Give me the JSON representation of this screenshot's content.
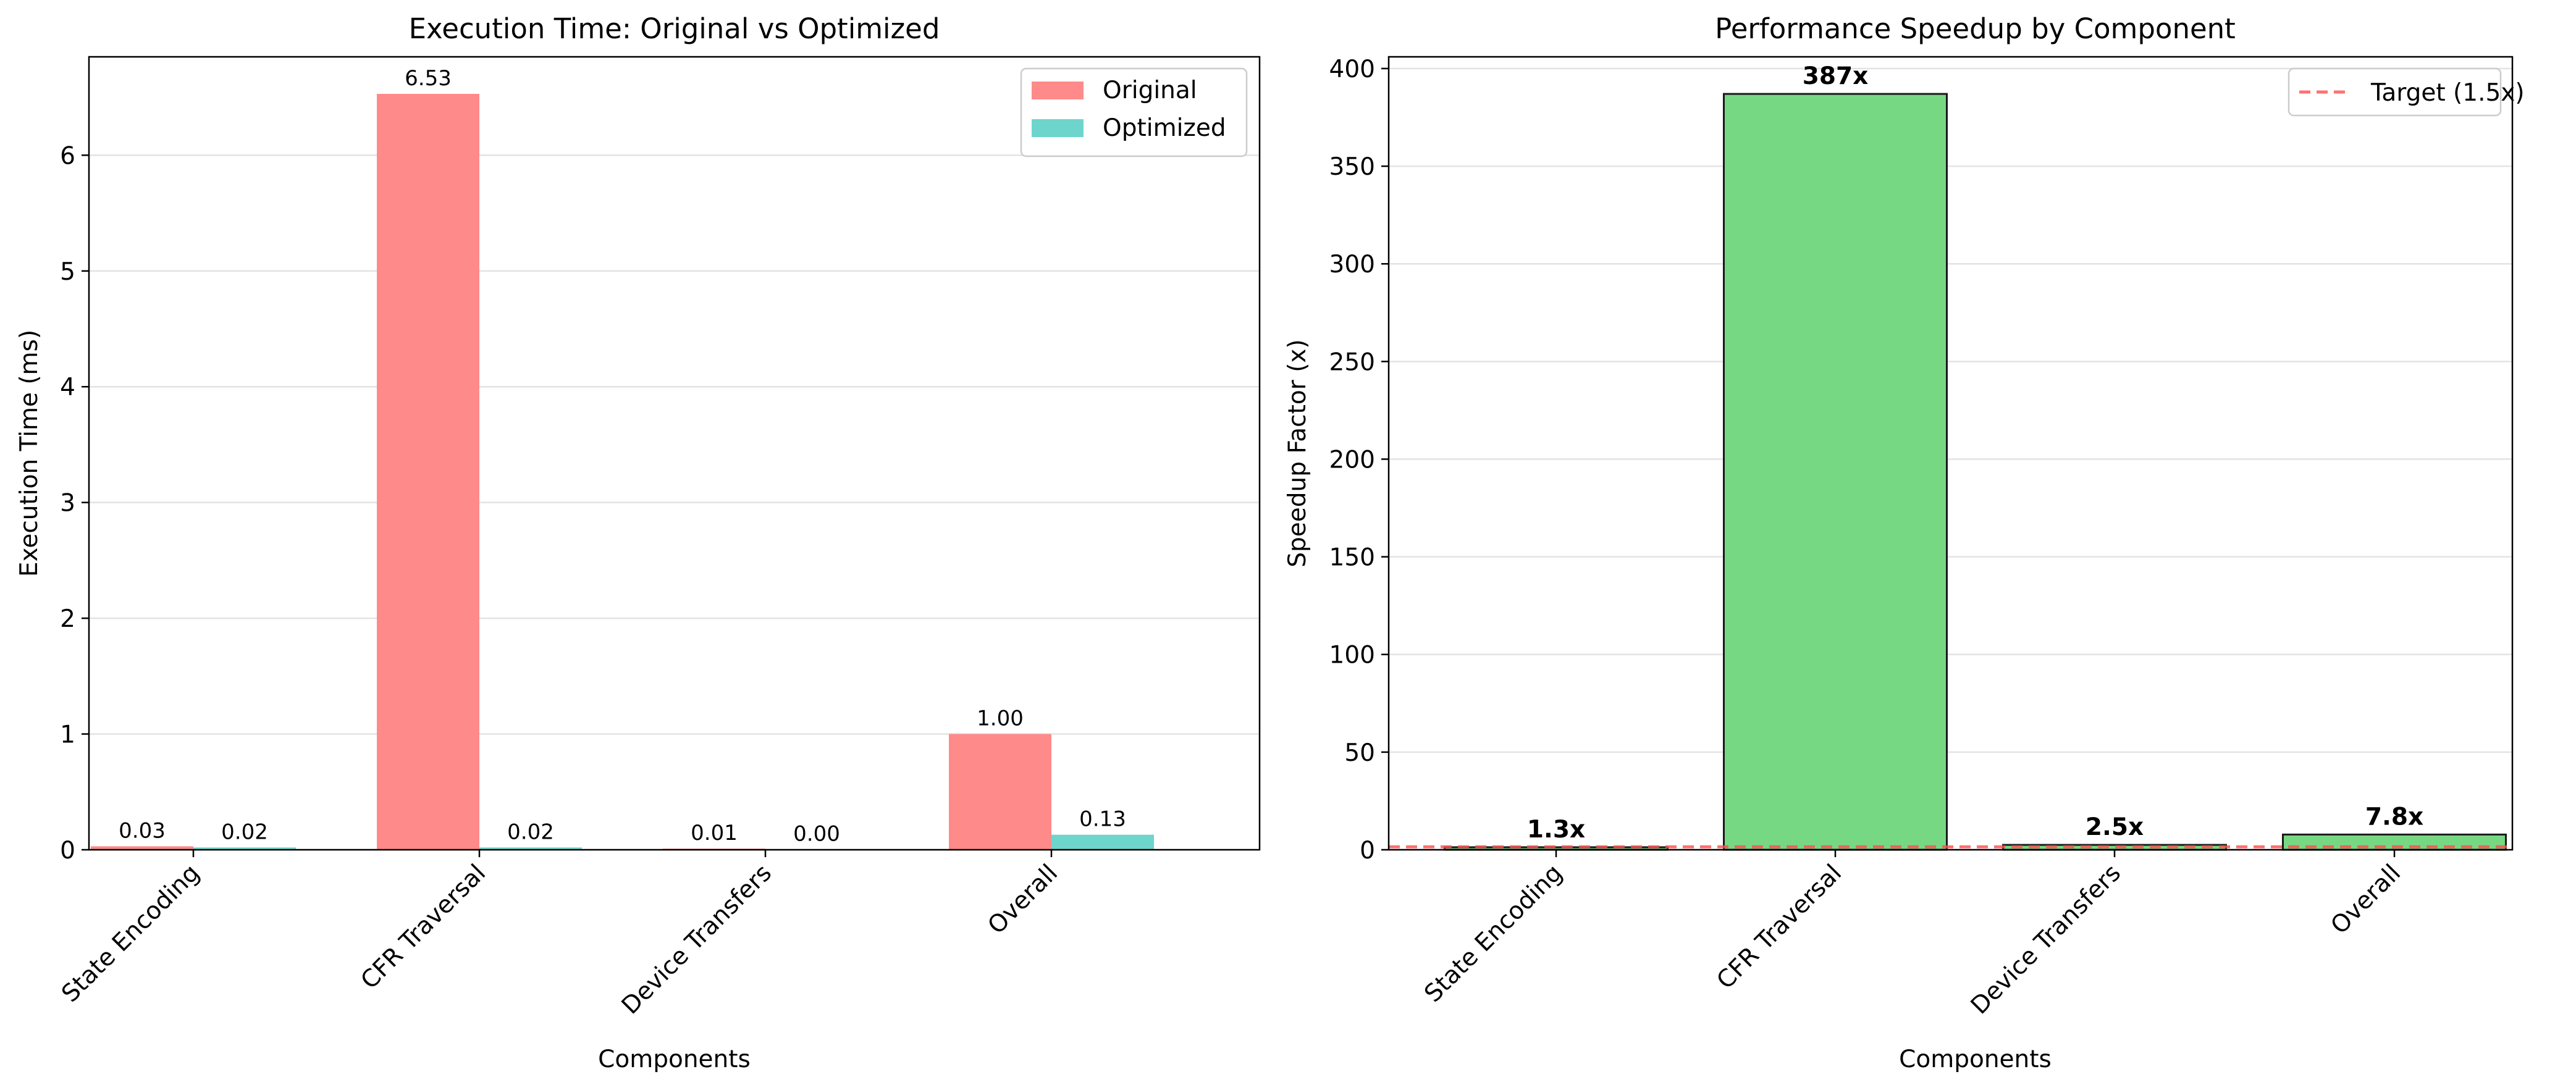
{
  "chart_data": [
    {
      "type": "bar",
      "title": "Execution Time: Original vs Optimized",
      "xlabel": "Components",
      "ylabel": "Execution Time (ms)",
      "categories": [
        "State Encoding",
        "CFR Traversal",
        "Device Transfers",
        "Overall"
      ],
      "series": [
        {
          "name": "Original",
          "color": "#ff8a8a",
          "values": [
            0.03,
            6.53,
            0.01,
            1.0
          ],
          "labels": [
            "0.03",
            "6.53",
            "0.01",
            "1.00"
          ]
        },
        {
          "name": "Optimized",
          "color": "#6ed5cc",
          "values": [
            0.02,
            0.02,
            0.004,
            0.13
          ],
          "labels": [
            "0.02",
            "0.02",
            "0.00",
            "0.13"
          ]
        }
      ],
      "ylim": [
        0,
        6.85
      ],
      "yticks": [
        0,
        1,
        2,
        3,
        4,
        5,
        6
      ],
      "grid": "y",
      "legend": "top-right"
    },
    {
      "type": "bar",
      "title": "Performance Speedup by Component",
      "xlabel": "Components",
      "ylabel": "Speedup Factor (x)",
      "categories": [
        "State Encoding",
        "CFR Traversal",
        "Device Transfers",
        "Overall"
      ],
      "values": [
        1.3,
        387,
        2.5,
        7.8
      ],
      "labels": [
        "1.3x",
        "387x",
        "2.5x",
        "7.8x"
      ],
      "color": "#77d884",
      "ylim": [
        0,
        406
      ],
      "yticks": [
        0,
        50,
        100,
        150,
        200,
        250,
        300,
        350,
        400
      ],
      "grid": "y",
      "reference_line": {
        "name": "Target (1.5x)",
        "value": 1.5,
        "color": "#ff4d4d"
      },
      "legend": "top-right"
    }
  ]
}
